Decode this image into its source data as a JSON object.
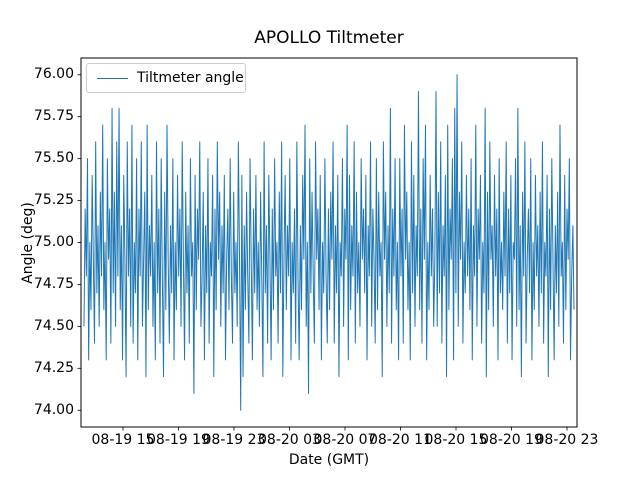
{
  "figure": {
    "title": "APOLLO Tiltmeter",
    "xlabel": "Date (GMT)",
    "ylabel": "Angle (deg)",
    "legend_label": "Tiltmeter angle",
    "line_color": "#1f77b4",
    "background_color": "#ffffff"
  },
  "chart_data": {
    "type": "line",
    "title": "APOLLO Tiltmeter",
    "xlabel": "Date (GMT)",
    "ylabel": "Angle (deg)",
    "legend": [
      "Tiltmeter angle"
    ],
    "legend_position": "upper left",
    "grid": false,
    "line_color": "#1f77b4",
    "x_tick_labels": [
      "08-19 15",
      "08-19 19",
      "08-19 23",
      "08-20 03",
      "08-20 07",
      "08-20 11",
      "08-20 15",
      "08-20 19",
      "08-20 23"
    ],
    "y_ticks": [
      74.0,
      74.25,
      74.5,
      74.75,
      75.0,
      75.25,
      75.5,
      75.75,
      76.0
    ],
    "ylim": [
      73.9,
      76.1
    ],
    "series": [
      {
        "name": "Tiltmeter angle",
        "values": [
          74.5,
          75.2,
          74.8,
          75.5,
          74.3,
          75.0,
          74.6,
          75.4,
          74.9,
          74.4,
          75.6,
          74.7,
          75.1,
          74.5,
          75.3,
          74.8,
          75.7,
          74.6,
          75.0,
          74.3,
          75.5,
          74.9,
          75.2,
          74.4,
          75.8,
          74.7,
          75.3,
          74.5,
          75.6,
          74.8,
          75.8,
          74.6,
          75.1,
          74.3,
          75.4,
          74.9,
          74.2,
          75.6,
          74.8,
          75.2,
          74.5,
          75.7,
          74.4,
          75.0,
          74.7,
          75.5,
          74.3,
          75.2,
          74.8,
          75.6,
          74.5,
          74.9,
          75.3,
          74.2,
          75.7,
          74.6,
          75.1,
          74.8,
          75.4,
          74.5,
          75.0,
          74.3,
          75.6,
          74.7,
          75.2,
          74.4,
          75.5,
          74.8,
          74.2,
          75.3,
          74.6,
          75.7,
          74.9,
          74.4,
          75.1,
          74.7,
          75.5,
          74.3,
          75.0,
          74.6,
          75.4,
          74.8,
          75.2,
          74.5,
          75.6,
          74.9,
          74.3,
          75.3,
          74.7,
          75.1,
          74.4,
          75.5,
          74.8,
          75.0,
          74.1,
          75.4,
          74.6,
          75.2,
          74.9,
          75.6,
          74.5,
          74.8,
          75.3,
          74.3,
          75.1,
          74.7,
          75.5,
          74.4,
          75.0,
          74.8,
          75.4,
          74.2,
          75.2,
          74.6,
          75.6,
          74.9,
          75.3,
          74.5,
          75.1,
          74.7,
          75.4,
          74.3,
          74.9,
          75.2,
          74.6,
          75.5,
          74.8,
          74.4,
          75.3,
          74.7,
          75.0,
          74.5,
          75.6,
          74.9,
          74.0,
          75.4,
          74.2,
          75.1,
          74.6,
          75.3,
          74.8,
          74.4,
          75.5,
          74.9,
          74.3,
          75.2,
          74.7,
          75.4,
          74.6,
          75.0,
          74.5,
          75.3,
          74.8,
          74.2,
          75.6,
          74.7,
          75.1,
          74.4,
          75.4,
          74.9,
          74.3,
          75.2,
          74.6,
          75.5,
          74.8,
          75.0,
          74.4,
          75.3,
          74.7,
          75.6,
          74.2,
          74.9,
          75.4,
          74.6,
          75.1,
          74.8,
          75.5,
          74.3,
          75.0,
          74.7,
          75.2,
          74.4,
          75.6,
          74.8,
          74.3,
          75.1,
          74.6,
          75.4,
          74.9,
          75.7,
          74.5,
          75.0,
          74.1,
          75.5,
          74.7,
          75.3,
          74.8,
          74.4,
          75.6,
          74.9,
          75.2,
          74.6,
          75.4,
          74.3,
          75.0,
          74.7,
          75.5,
          74.8,
          74.4,
          75.2,
          74.6,
          75.3,
          74.9,
          75.6,
          74.4,
          75.1,
          74.7,
          75.4,
          74.2,
          75.0,
          74.8,
          75.5,
          74.5,
          75.2,
          74.9,
          75.7,
          74.3,
          75.4,
          74.6,
          75.1,
          74.8,
          75.6,
          74.4,
          75.3,
          74.7,
          75.0,
          74.5,
          75.5,
          74.9,
          75.2,
          74.7,
          75.4,
          74.3,
          75.1,
          74.8,
          75.6,
          74.5,
          75.2,
          74.9,
          74.4,
          75.5,
          74.6,
          75.3,
          74.8,
          75.0,
          74.2,
          75.6,
          74.9,
          75.3,
          74.5,
          75.1,
          74.7,
          75.8,
          74.4,
          75.2,
          74.8,
          75.5,
          74.6,
          75.0,
          74.3,
          75.5,
          74.8,
          75.2,
          74.4,
          75.7,
          74.9,
          75.3,
          74.6,
          75.0,
          74.3,
          75.6,
          74.7,
          75.4,
          74.5,
          75.1,
          74.8,
          75.9,
          74.6,
          75.2,
          74.4,
          75.5,
          74.9,
          75.7,
          74.3,
          75.0,
          74.6,
          75.4,
          74.8,
          75.2,
          74.5,
          74.9,
          75.9,
          74.5,
          75.3,
          74.7,
          75.6,
          74.4,
          75.1,
          74.8,
          75.4,
          74.2,
          75.7,
          74.6,
          75.2,
          74.9,
          75.5,
          74.3,
          75.8,
          74.7,
          76.0,
          74.5,
          75.3,
          74.9,
          75.6,
          74.4,
          75.0,
          74.7,
          75.4,
          74.8,
          75.2,
          74.6,
          75.5,
          74.3,
          75.1,
          74.8,
          75.7,
          74.5,
          75.2,
          74.9,
          75.4,
          74.4,
          75.0,
          74.7,
          75.8,
          74.2,
          75.3,
          74.6,
          75.6,
          74.9,
          75.1,
          74.5,
          75.4,
          74.8,
          75.2,
          74.3,
          75.5,
          74.7,
          75.0,
          74.6,
          75.3,
          74.8,
          75.6,
          74.4,
          75.2,
          74.7,
          75.4,
          74.3,
          75.0,
          74.9,
          75.5,
          74.5,
          75.8,
          74.6,
          75.1,
          74.2,
          75.3,
          74.8,
          75.6,
          74.4,
          74.9,
          75.2,
          74.7,
          75.5,
          74.3,
          75.0,
          74.6,
          75.4,
          74.8,
          75.1,
          74.5,
          75.3,
          74.7,
          75.6,
          74.4,
          75.0,
          74.8,
          75.4,
          74.2,
          75.2,
          74.6,
          75.5,
          74.9,
          74.3,
          75.1,
          74.7,
          75.3,
          74.5,
          75.7,
          74.8,
          75.0,
          74.4,
          75.4,
          74.6,
          75.2,
          74.9,
          75.5,
          74.3,
          74.8,
          75.1,
          74.6
        ]
      }
    ]
  }
}
